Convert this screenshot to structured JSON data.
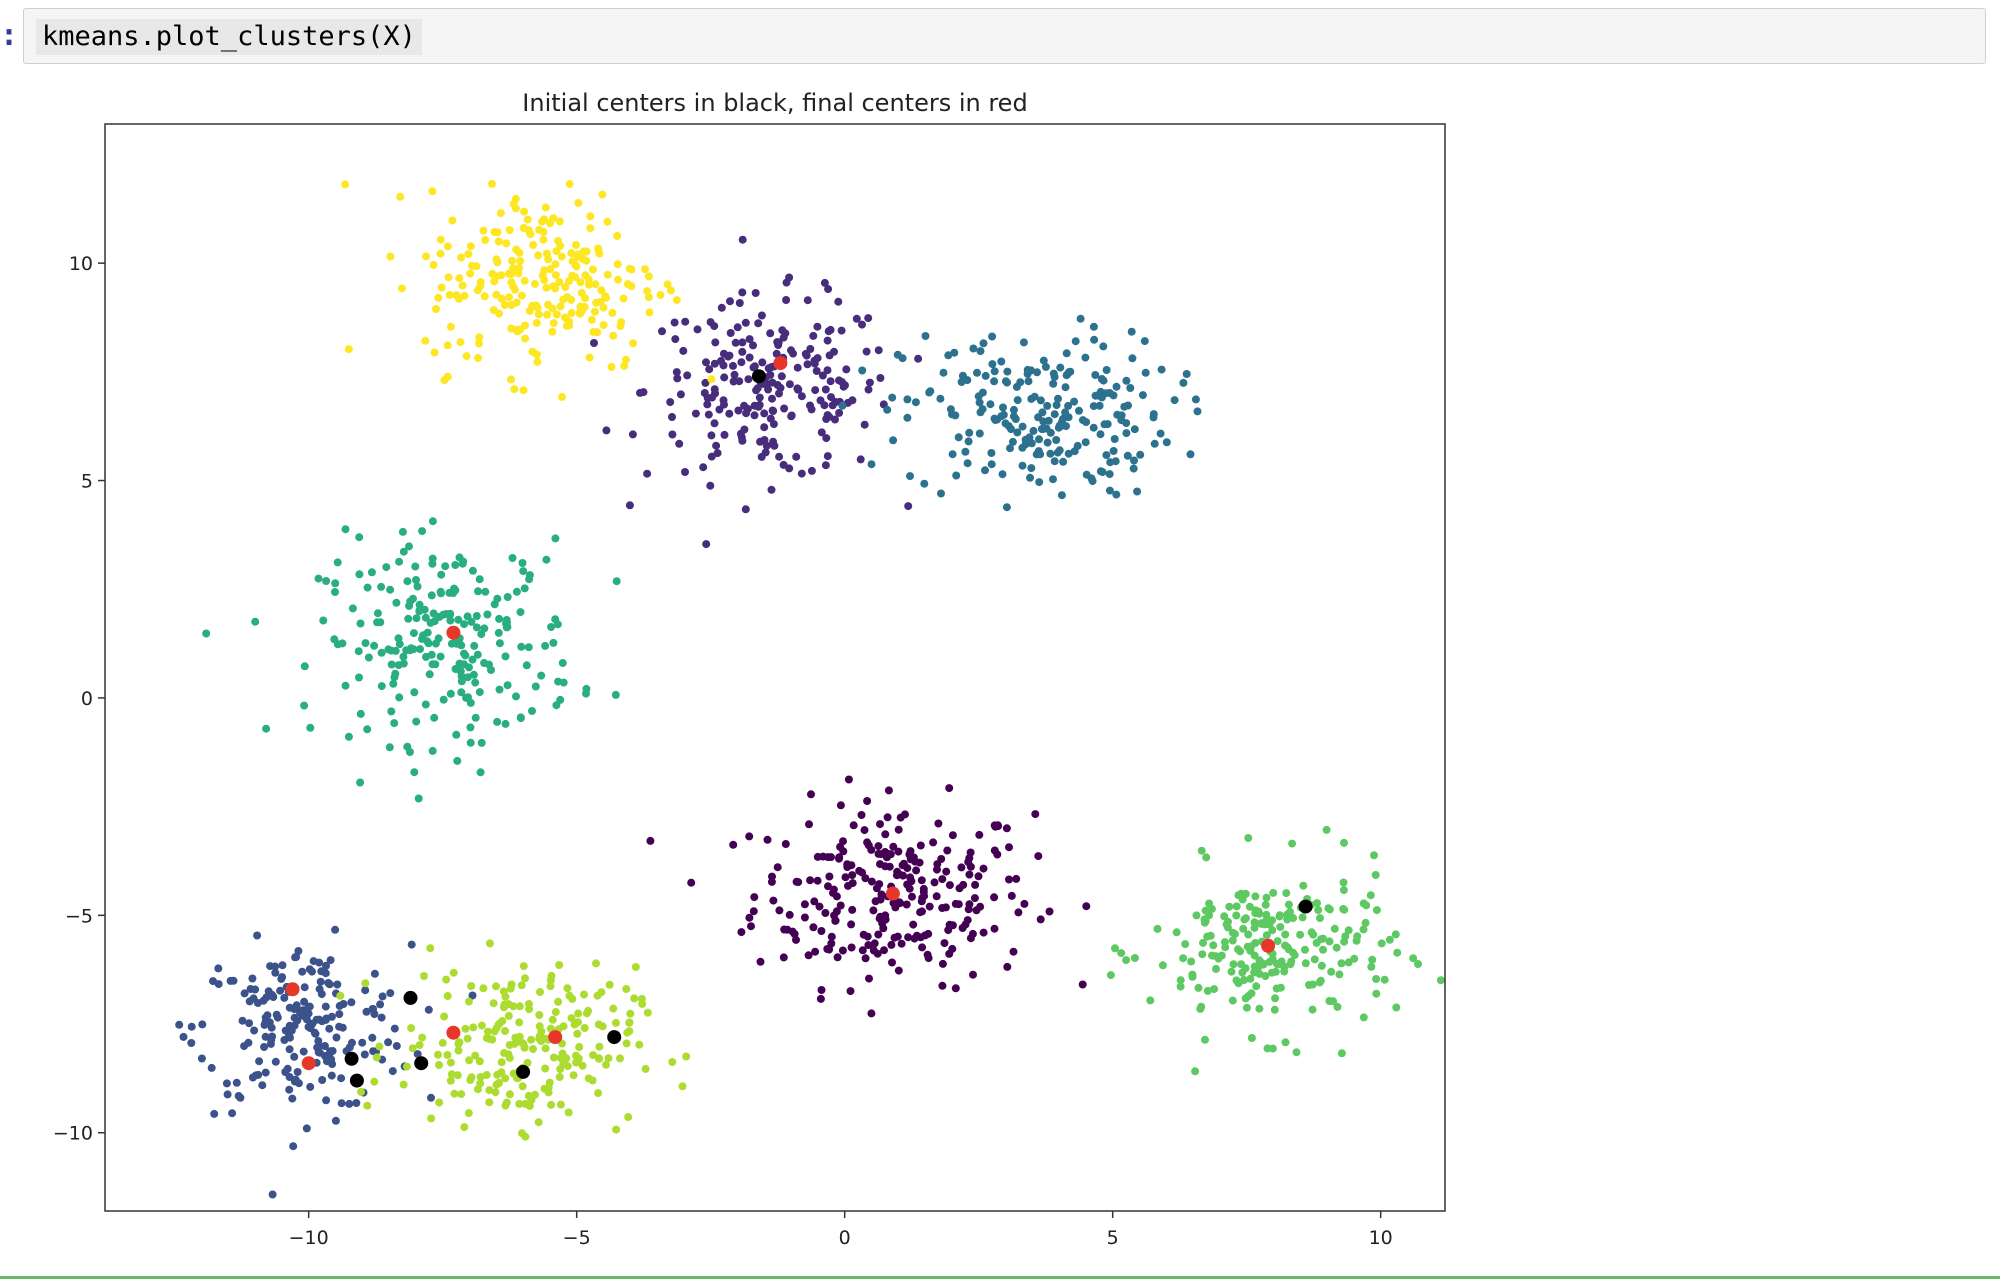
{
  "cell": {
    "prompt": ":",
    "code": "kmeans.plot_clusters(X)"
  },
  "chart_data": {
    "type": "scatter",
    "title": "Initial centers in black, final centers in red",
    "xlabel": "",
    "ylabel": "",
    "xlim": [
      -13.8,
      11.2
    ],
    "ylim": [
      -11.8,
      13.2
    ],
    "xticks": [
      -10,
      -5,
      0,
      5,
      10
    ],
    "yticks": [
      -10,
      -5,
      0,
      5,
      10
    ],
    "xtick_labels": [
      "−10",
      "−5",
      "0",
      "5",
      "10"
    ],
    "ytick_labels": [
      "−10",
      "−5",
      "0",
      "5",
      "10"
    ],
    "grid": false,
    "legend": "none",
    "clusters": [
      {
        "color": "#440154",
        "center": [
          0.9,
          -4.5
        ],
        "spread": [
          1.3,
          1.05
        ],
        "count": 260
      },
      {
        "color": "#472d7b",
        "center": [
          -1.4,
          7.1
        ],
        "spread": [
          1.15,
          1.05
        ],
        "count": 220
      },
      {
        "color": "#3b528b",
        "center": [
          -10.1,
          -7.6
        ],
        "spread": [
          1.0,
          0.95
        ],
        "count": 200
      },
      {
        "color": "#2c728e",
        "center": [
          3.6,
          6.5
        ],
        "spread": [
          1.25,
          0.95
        ],
        "count": 220
      },
      {
        "color": "#28ae80",
        "center": [
          -7.4,
          1.3
        ],
        "spread": [
          1.2,
          1.15
        ],
        "count": 230
      },
      {
        "color": "#5ec962",
        "center": [
          8.0,
          -5.8
        ],
        "spread": [
          1.15,
          0.95
        ],
        "count": 230
      },
      {
        "color": "#addc30",
        "center": [
          -6.1,
          -8.0
        ],
        "spread": [
          1.1,
          0.9
        ],
        "count": 220
      },
      {
        "color": "#fde725",
        "center": [
          -5.6,
          9.6
        ],
        "spread": [
          1.1,
          1.05
        ],
        "count": 230
      }
    ],
    "initial_centers": {
      "color": "#000000",
      "points": [
        [
          -1.6,
          7.4
        ],
        [
          -9.2,
          -8.3
        ],
        [
          -9.1,
          -8.8
        ],
        [
          -8.1,
          -6.9
        ],
        [
          -7.9,
          -8.4
        ],
        [
          -6.0,
          -8.6
        ],
        [
          -4.3,
          -7.8
        ],
        [
          8.6,
          -4.8
        ]
      ]
    },
    "final_centers": {
      "color": "#e8362a",
      "points": [
        [
          -1.2,
          7.7
        ],
        [
          -7.3,
          1.5
        ],
        [
          -10.3,
          -6.7
        ],
        [
          -10.0,
          -8.4
        ],
        [
          -7.3,
          -7.7
        ],
        [
          -5.4,
          -7.8
        ],
        [
          0.9,
          -4.5
        ],
        [
          7.9,
          -5.7
        ]
      ]
    }
  }
}
